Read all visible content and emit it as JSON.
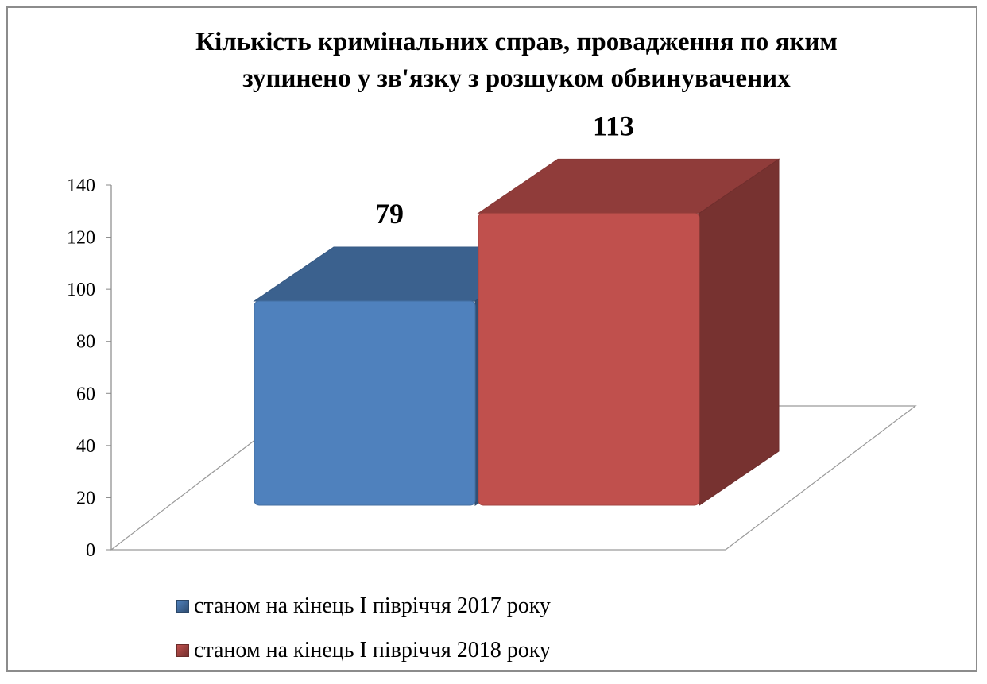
{
  "chart_data": {
    "type": "bar",
    "title_lines": [
      "Кількість кримінальних справ, провадження по яким",
      "зупинено у зв'язку з розшуком обвинувачених"
    ],
    "xlabel": "",
    "ylabel": "",
    "ylim": [
      0,
      140
    ],
    "yticks": [
      0,
      20,
      40,
      60,
      80,
      100,
      120,
      140
    ],
    "series": [
      {
        "name": "станом на кінець І півріччя 2017 року",
        "values": [
          79
        ],
        "color": "#4f81bd"
      },
      {
        "name": "станом на кінець І півріччя 2018 року",
        "values": [
          113
        ],
        "color": "#c0504d"
      }
    ],
    "data_labels": [
      "79",
      "113"
    ],
    "legend_position": "bottom",
    "style": "3d-column"
  }
}
